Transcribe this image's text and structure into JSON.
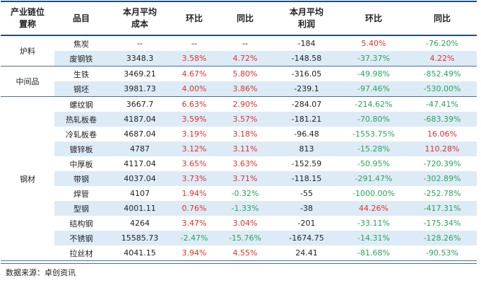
{
  "headers": {
    "c0": [
      "产业链位",
      "置称"
    ],
    "c1": "品目",
    "c2": [
      "本月平均",
      "成本"
    ],
    "c3": "环比",
    "c4": "同比",
    "c5": [
      "本月平均",
      "利润"
    ],
    "c6": "环比",
    "c7": "同比"
  },
  "groups": [
    {
      "name": "炉料",
      "rows": [
        {
          "item": "焦炭",
          "cost": "--",
          "cost_mom": "--",
          "cost_yoy": "--",
          "profit": "-184",
          "profit_mom": "5.40%",
          "profit_yoy": "-76.20%"
        },
        {
          "item": "废钢铁",
          "cost": "3348.3",
          "cost_mom": "3.58%",
          "cost_yoy": "4.72%",
          "profit": "-148.58",
          "profit_mom": "-37.37%",
          "profit_yoy": "4.22%"
        }
      ]
    },
    {
      "name": "中间品",
      "rows": [
        {
          "item": "生铁",
          "cost": "3469.21",
          "cost_mom": "4.67%",
          "cost_yoy": "5.80%",
          "profit": "-316.05",
          "profit_mom": "-49.98%",
          "profit_yoy": "-852.49%"
        },
        {
          "item": "钢坯",
          "cost": "3981.73",
          "cost_mom": "4.00%",
          "cost_yoy": "3.86%",
          "profit": "-239.1",
          "profit_mom": "-97.46%",
          "profit_yoy": "-530.00%"
        }
      ]
    },
    {
      "name": "钢材",
      "rows": [
        {
          "item": "螺纹钢",
          "cost": "3667.7",
          "cost_mom": "6.63%",
          "cost_yoy": "2.90%",
          "profit": "-284.07",
          "profit_mom": "-214.62%",
          "profit_yoy": "-47.41%"
        },
        {
          "item": "热轧板卷",
          "cost": "4187.04",
          "cost_mom": "3.59%",
          "cost_yoy": "3.57%",
          "profit": "-181.21",
          "profit_mom": "-70.80%",
          "profit_yoy": "-683.39%"
        },
        {
          "item": "冷轧板卷",
          "cost": "4687.04",
          "cost_mom": "3.19%",
          "cost_yoy": "3.18%",
          "profit": "-96.48",
          "profit_mom": "-1553.75%",
          "profit_yoy": "16.06%"
        },
        {
          "item": "镀锌板",
          "cost": "4787",
          "cost_mom": "3.12%",
          "cost_yoy": "3.11%",
          "profit": "813",
          "profit_mom": "-15.28%",
          "profit_yoy": "110.28%"
        },
        {
          "item": "中厚板",
          "cost": "4117.04",
          "cost_mom": "3.65%",
          "cost_yoy": "3.63%",
          "profit": "-152.59",
          "profit_mom": "-50.95%",
          "profit_yoy": "-720.39%"
        },
        {
          "item": "带钢",
          "cost": "4037.04",
          "cost_mom": "3.73%",
          "cost_yoy": "3.71%",
          "profit": "-118.15",
          "profit_mom": "-291.47%",
          "profit_yoy": "-302.89%"
        },
        {
          "item": "焊管",
          "cost": "4107",
          "cost_mom": "1.94%",
          "cost_yoy": "-0.32%",
          "profit": "-55",
          "profit_mom": "-1000.00%",
          "profit_yoy": "-252.78%"
        },
        {
          "item": "型钢",
          "cost": "4001.11",
          "cost_mom": "0.76%",
          "cost_yoy": "-1.33%",
          "profit": "-38",
          "profit_mom": "44.26%",
          "profit_yoy": "-417.31%"
        },
        {
          "item": "结构钢",
          "cost": "4264",
          "cost_mom": "3.47%",
          "cost_yoy": "3.04%",
          "profit": "-201",
          "profit_mom": "-33.11%",
          "profit_yoy": "-175.34%"
        },
        {
          "item": "不锈钢",
          "cost": "15585.73",
          "cost_mom": "-2.47%",
          "cost_yoy": "-15.76%",
          "profit": "-1674.75",
          "profit_mom": "-14.31%",
          "profit_yoy": "-128.26%"
        },
        {
          "item": "拉丝材",
          "cost": "4041.15",
          "cost_mom": "3.94%",
          "cost_yoy": "4.55%",
          "profit": "24.41",
          "profit_mom": "-81.68%",
          "profit_yoy": "-90.53%"
        }
      ]
    }
  ],
  "source": "数据来源：卓创资讯",
  "colors": {
    "up": "#e0322b",
    "down": "#2aa55a",
    "alt_row": "#ddebf7",
    "rule": "#1f4e79"
  }
}
